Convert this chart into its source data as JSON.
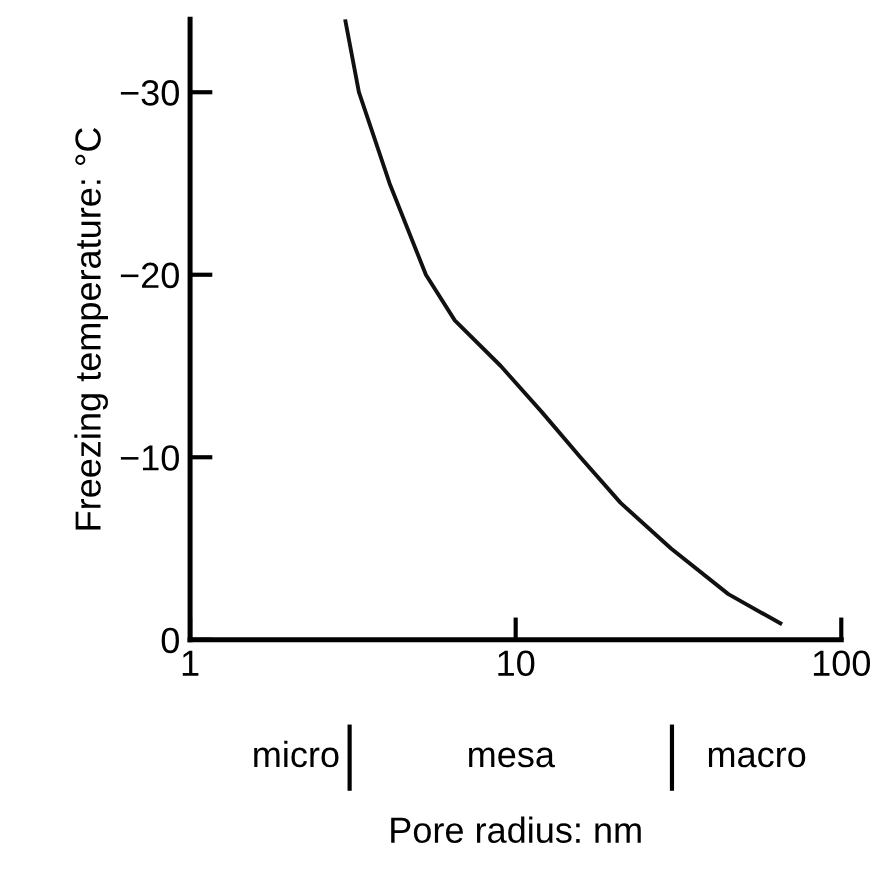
{
  "chart_data": {
    "type": "line",
    "xlabel": "Pore radius: nm",
    "ylabel": "Freezing temperature: °C",
    "x": [
      3.0,
      3.3,
      3.6,
      4.1,
      5.3,
      6.5,
      9.0,
      12,
      15.8,
      21,
      30,
      45,
      65
    ],
    "series": [
      {
        "color": "#111111",
        "values": [
          -33.9,
          -30,
          -28,
          -25,
          -20,
          -17.5,
          -15,
          -12.5,
          -10,
          -7.5,
          -5,
          -2.5,
          -0.9
        ]
      }
    ],
    "log": "x",
    "xlim": [
      1,
      100
    ],
    "xticks": [
      1,
      10,
      100
    ],
    "ylim": [
      0,
      -34
    ],
    "yticks": [
      0,
      -10,
      -20,
      -30
    ],
    "annotations": [
      "micro",
      "mesa",
      "macro"
    ],
    "grid": false,
    "legend": false,
    "marker": "none",
    "line_style": "solid"
  }
}
